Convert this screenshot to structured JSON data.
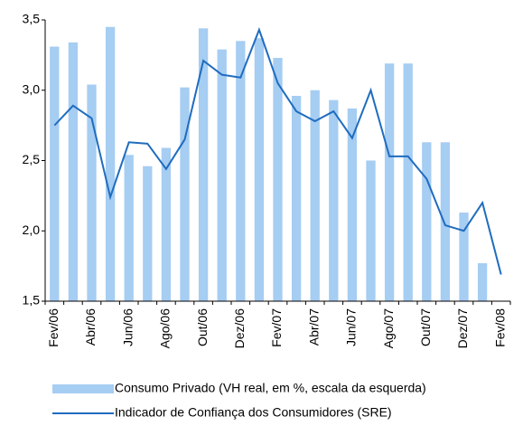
{
  "chart_data": {
    "type": "bar-line",
    "categories": [
      "Fev/06",
      null,
      "Abr/06",
      null,
      "Jun/06",
      null,
      "Ago/06",
      null,
      "Out/06",
      null,
      "Dez/06",
      null,
      "Fev/07",
      null,
      "Abr/07",
      null,
      "Jun/07",
      null,
      "Ago/07",
      null,
      "Out/07",
      null,
      "Dez/07",
      null,
      "Fev/08"
    ],
    "series": [
      {
        "name": "Consumo Privado (VH real, em %, escala da esquerda)",
        "type": "bar",
        "color": "#a6cdf2",
        "values": [
          3.31,
          3.34,
          3.04,
          3.45,
          2.54,
          2.46,
          2.59,
          3.02,
          3.44,
          3.29,
          3.35,
          3.37,
          3.23,
          2.96,
          3.0,
          2.93,
          2.87,
          2.5,
          3.19,
          3.19,
          2.63,
          2.63,
          2.13,
          1.77,
          null
        ]
      },
      {
        "name": "Indicador de Confiança dos Consumidores (SRE)",
        "type": "line",
        "color": "#1f6cbf",
        "values": [
          2.75,
          2.89,
          2.8,
          2.24,
          2.63,
          2.62,
          2.44,
          2.65,
          3.21,
          3.11,
          3.09,
          3.43,
          3.05,
          2.85,
          2.78,
          2.85,
          2.66,
          3.0,
          2.53,
          2.53,
          2.37,
          2.04,
          2.0,
          2.2,
          1.69
        ]
      }
    ],
    "ylim": [
      1.5,
      3.5
    ],
    "yticks": [
      {
        "value": 1.5,
        "label": "1,5"
      },
      {
        "value": 2.0,
        "label": "2,0"
      },
      {
        "value": 2.5,
        "label": "2,5"
      },
      {
        "value": 3.0,
        "label": "3,0"
      },
      {
        "value": 3.5,
        "label": "3,5"
      }
    ],
    "grid": false
  }
}
